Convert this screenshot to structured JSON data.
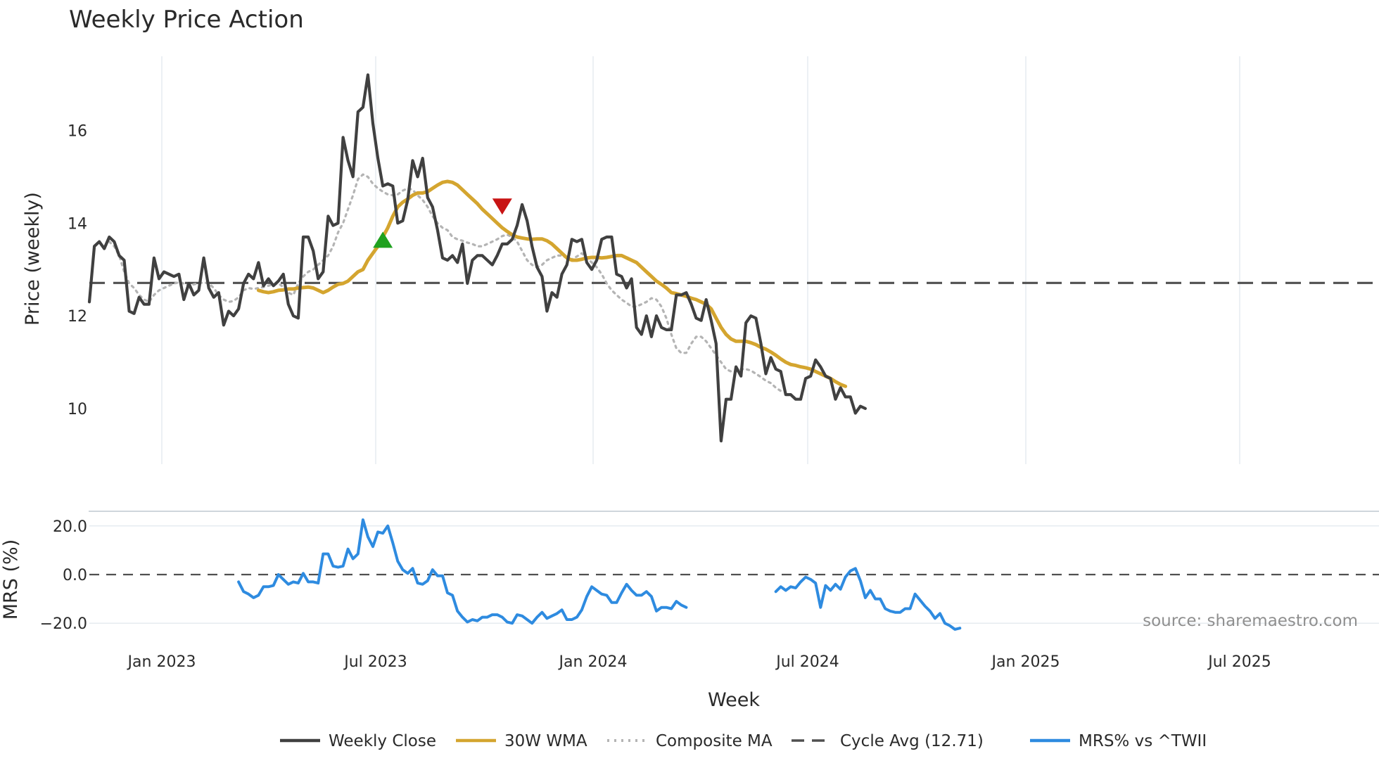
{
  "chart_data": {
    "type": "line",
    "title": "Weekly Price Action",
    "xlabel": "Week",
    "x_ticks": [
      "Jan 2023",
      "Jul 2023",
      "Jan 2024",
      "Jul 2024",
      "Jan 2025",
      "Jul 2025"
    ],
    "price_panel": {
      "ylabel": "Price (weekly)",
      "ylim": [
        8.8,
        17.6
      ],
      "y_ticks": [
        "10",
        "12",
        "14",
        "16"
      ],
      "cycle_avg": 12.71,
      "series": [
        {
          "name": "Weekly Close",
          "color": "#404040",
          "style": "solid",
          "x_start": 0,
          "values": [
            12.3,
            13.5,
            13.6,
            13.45,
            13.7,
            13.6,
            13.3,
            13.2,
            12.1,
            12.05,
            12.4,
            12.25,
            12.25,
            13.25,
            12.8,
            12.95,
            12.9,
            12.85,
            12.9,
            12.35,
            12.7,
            12.45,
            12.55,
            13.25,
            12.6,
            12.4,
            12.5,
            11.8,
            12.1,
            12.0,
            12.15,
            12.7,
            12.9,
            12.8,
            13.15,
            12.65,
            12.8,
            12.65,
            12.75,
            12.9,
            12.25,
            12.0,
            11.95,
            13.7,
            13.7,
            13.4,
            12.8,
            12.95,
            14.15,
            13.95,
            14.0,
            15.85,
            15.35,
            15.0,
            16.4,
            16.5,
            17.2,
            16.15,
            15.4,
            14.8,
            14.85,
            14.8,
            14.0,
            14.05,
            14.5,
            15.35,
            15.0,
            15.4,
            14.55,
            14.35,
            13.85,
            13.25,
            13.2,
            13.3,
            13.15,
            13.55,
            12.7,
            13.2,
            13.3,
            13.3,
            13.2,
            13.1,
            13.3,
            13.55,
            13.55,
            13.65,
            13.95,
            14.4,
            14.05,
            13.5,
            13.05,
            12.85,
            12.1,
            12.5,
            12.4,
            12.9,
            13.1,
            13.65,
            13.6,
            13.65,
            13.15,
            13.0,
            13.2,
            13.65,
            13.7,
            13.7,
            12.9,
            12.85,
            12.6,
            12.8,
            11.75,
            11.6,
            12.0,
            11.55,
            12.0,
            11.75,
            11.7,
            11.7,
            12.45,
            12.45,
            12.5,
            12.25,
            11.95,
            11.9,
            12.35,
            11.9,
            11.4,
            9.3,
            10.2,
            10.2,
            10.9,
            10.7,
            11.85,
            12.0,
            11.95,
            11.4,
            10.75,
            11.1,
            10.85,
            10.8,
            10.3,
            10.3,
            10.2,
            10.2,
            10.65,
            10.7,
            11.05,
            10.9,
            10.7,
            10.65,
            10.2,
            10.45,
            10.25,
            10.25,
            9.9,
            10.05,
            10.0
          ]
        },
        {
          "name": "30W WMA",
          "color": "#D4A52F",
          "style": "solid",
          "x_start": 34,
          "values": [
            12.55,
            12.52,
            12.5,
            12.52,
            12.55,
            12.56,
            12.58,
            12.58,
            12.6,
            12.61,
            12.62,
            12.6,
            12.55,
            12.5,
            12.55,
            12.62,
            12.68,
            12.7,
            12.75,
            12.85,
            12.95,
            13.0,
            13.2,
            13.35,
            13.5,
            13.7,
            13.9,
            14.15,
            14.35,
            14.45,
            14.52,
            14.6,
            14.65,
            14.65,
            14.68,
            14.75,
            14.82,
            14.88,
            14.9,
            14.88,
            14.82,
            14.72,
            14.62,
            14.52,
            14.42,
            14.3,
            14.2,
            14.1,
            14.0,
            13.9,
            13.82,
            13.75,
            13.7,
            13.68,
            13.66,
            13.65,
            13.66,
            13.66,
            13.62,
            13.55,
            13.45,
            13.35,
            13.25,
            13.2,
            13.2,
            13.22,
            13.25,
            13.26,
            13.26,
            13.25,
            13.26,
            13.28,
            13.3,
            13.3,
            13.25,
            13.2,
            13.15,
            13.05,
            12.95,
            12.85,
            12.75,
            12.68,
            12.6,
            12.5,
            12.48,
            12.45,
            12.42,
            12.38,
            12.35,
            12.3,
            12.25,
            12.15,
            11.95,
            11.75,
            11.6,
            11.5,
            11.45,
            11.45,
            11.45,
            11.42,
            11.38,
            11.32,
            11.28,
            11.22,
            11.15,
            11.07,
            11.0,
            10.95,
            10.93,
            10.9,
            10.88,
            10.85,
            10.8,
            10.75,
            10.7,
            10.65,
            10.58,
            10.52,
            10.48
          ]
        },
        {
          "name": "Composite MA",
          "color": "#b4b4b4",
          "style": "dotted",
          "x_start": 4,
          "values": [
            13.6,
            13.5,
            13.3,
            12.95,
            12.7,
            12.6,
            12.45,
            12.35,
            12.3,
            12.45,
            12.55,
            12.6,
            12.65,
            12.7,
            12.72,
            12.7,
            12.65,
            12.68,
            12.7,
            12.72,
            12.7,
            12.6,
            12.45,
            12.35,
            12.3,
            12.32,
            12.4,
            12.55,
            12.6,
            12.58,
            12.6,
            12.62,
            12.65,
            12.68,
            12.7,
            12.62,
            12.5,
            12.45,
            12.7,
            12.85,
            12.95,
            13.0,
            13.1,
            13.2,
            13.3,
            13.5,
            13.8,
            14.0,
            14.3,
            14.6,
            14.95,
            15.05,
            15.0,
            14.85,
            14.75,
            14.68,
            14.62,
            14.6,
            14.62,
            14.7,
            14.75,
            14.72,
            14.6,
            14.5,
            14.35,
            14.15,
            14.0,
            13.9,
            13.85,
            13.7,
            13.65,
            13.62,
            13.58,
            13.55,
            13.5,
            13.5,
            13.55,
            13.6,
            13.65,
            13.72,
            13.75,
            13.7,
            13.6,
            13.4,
            13.2,
            13.1,
            13.05,
            13.1,
            13.2,
            13.25,
            13.3,
            13.3,
            13.25,
            13.22,
            13.28,
            13.35,
            13.25,
            13.15,
            13.05,
            12.9,
            12.7,
            12.55,
            12.45,
            12.35,
            12.28,
            12.2,
            12.2,
            12.25,
            12.3,
            12.38,
            12.35,
            12.2,
            11.95,
            11.6,
            11.3,
            11.2,
            11.2,
            11.4,
            11.55,
            11.55,
            11.45,
            11.3,
            11.15,
            11.0,
            10.85,
            10.8,
            10.8,
            10.85,
            10.85,
            10.82,
            10.75,
            10.68,
            10.6,
            10.55,
            10.45,
            10.38
          ]
        }
      ],
      "annotations": [
        {
          "type": "buy-marker",
          "x": 59,
          "y": 13.62,
          "color": "#1fa11f"
        },
        {
          "type": "sell-marker",
          "x": 83,
          "y": 14.38,
          "color": "#c81414"
        }
      ]
    },
    "mrs_panel": {
      "ylabel": "MRS (%)",
      "ylim": [
        -26,
        26
      ],
      "y_ticks": [
        "20.0",
        "0.0",
        "−20.0"
      ],
      "zero_line": 0,
      "series": [
        {
          "name": "MRS% vs ^TWII",
          "color": "#2E8BE0",
          "segments": [
            {
              "x_start": 30,
              "values": [
                -3,
                -7,
                -8,
                -9.5,
                -8.5,
                -5,
                -5,
                -4.5,
                0,
                -2,
                -4,
                -3,
                -3.5,
                0.5,
                -3,
                -3,
                -3.5,
                8.5,
                8.5,
                3.5,
                3,
                3.5,
                10.5,
                6.5,
                8.5,
                22.5,
                15.5,
                11.5,
                17.5,
                17,
                20,
                13,
                5.5,
                2,
                0.5,
                2.5,
                -3.5,
                -4,
                -2.5,
                2,
                -0.5,
                -0.5,
                -7.5,
                -8.5,
                -15,
                -17.5,
                -19.5,
                -18.5,
                -19,
                -17.5,
                -17.5,
                -16.5,
                -16.5,
                -17.5,
                -19.5,
                -20,
                -16.5,
                -17,
                -18.5,
                -20,
                -17.5,
                -15.5,
                -18,
                -17,
                -16,
                -14.5,
                -18.5,
                -18.5,
                -17.5,
                -14.5,
                -9,
                -5,
                -6.5,
                -8,
                -8.5,
                -11.5,
                -11.5,
                -7.5,
                -4,
                -6.5,
                -8.5,
                -8.5,
                -7,
                -9,
                -15,
                -13.5,
                -13.5,
                -14,
                -11,
                -12.5,
                -13.5
              ]
            },
            {
              "x_start": 138,
              "values": [
                -7,
                -5,
                -6.5,
                -5,
                -5.5,
                -3,
                -1,
                -2,
                -3.5,
                -13.5,
                -4.5,
                -6.5,
                -4,
                -6,
                -1,
                1.5,
                2.5,
                -2.5,
                -9.5,
                -6.5,
                -10,
                -10,
                -14,
                -15,
                -15.5,
                -15.5,
                -14,
                -14,
                -8,
                -10.5,
                -13,
                -15,
                -18,
                -16,
                -20,
                -21,
                -22.5,
                -22
              ]
            }
          ]
        }
      ]
    },
    "legend": {
      "position": "bottom",
      "items": [
        {
          "label": "Weekly Close",
          "color": "#404040",
          "dash": "solid"
        },
        {
          "label": "30W WMA",
          "color": "#D4A52F",
          "dash": "solid"
        },
        {
          "label": "Composite MA",
          "color": "#b4b4b4",
          "dash": "dotted"
        },
        {
          "label": "Cycle Avg (12.71)",
          "color": "#505050",
          "dash": "dashed"
        },
        {
          "label": "MRS% vs ^TWII",
          "color": "#2E8BE0",
          "dash": "solid"
        }
      ]
    },
    "source_text": "source: sharemaestro.com"
  }
}
